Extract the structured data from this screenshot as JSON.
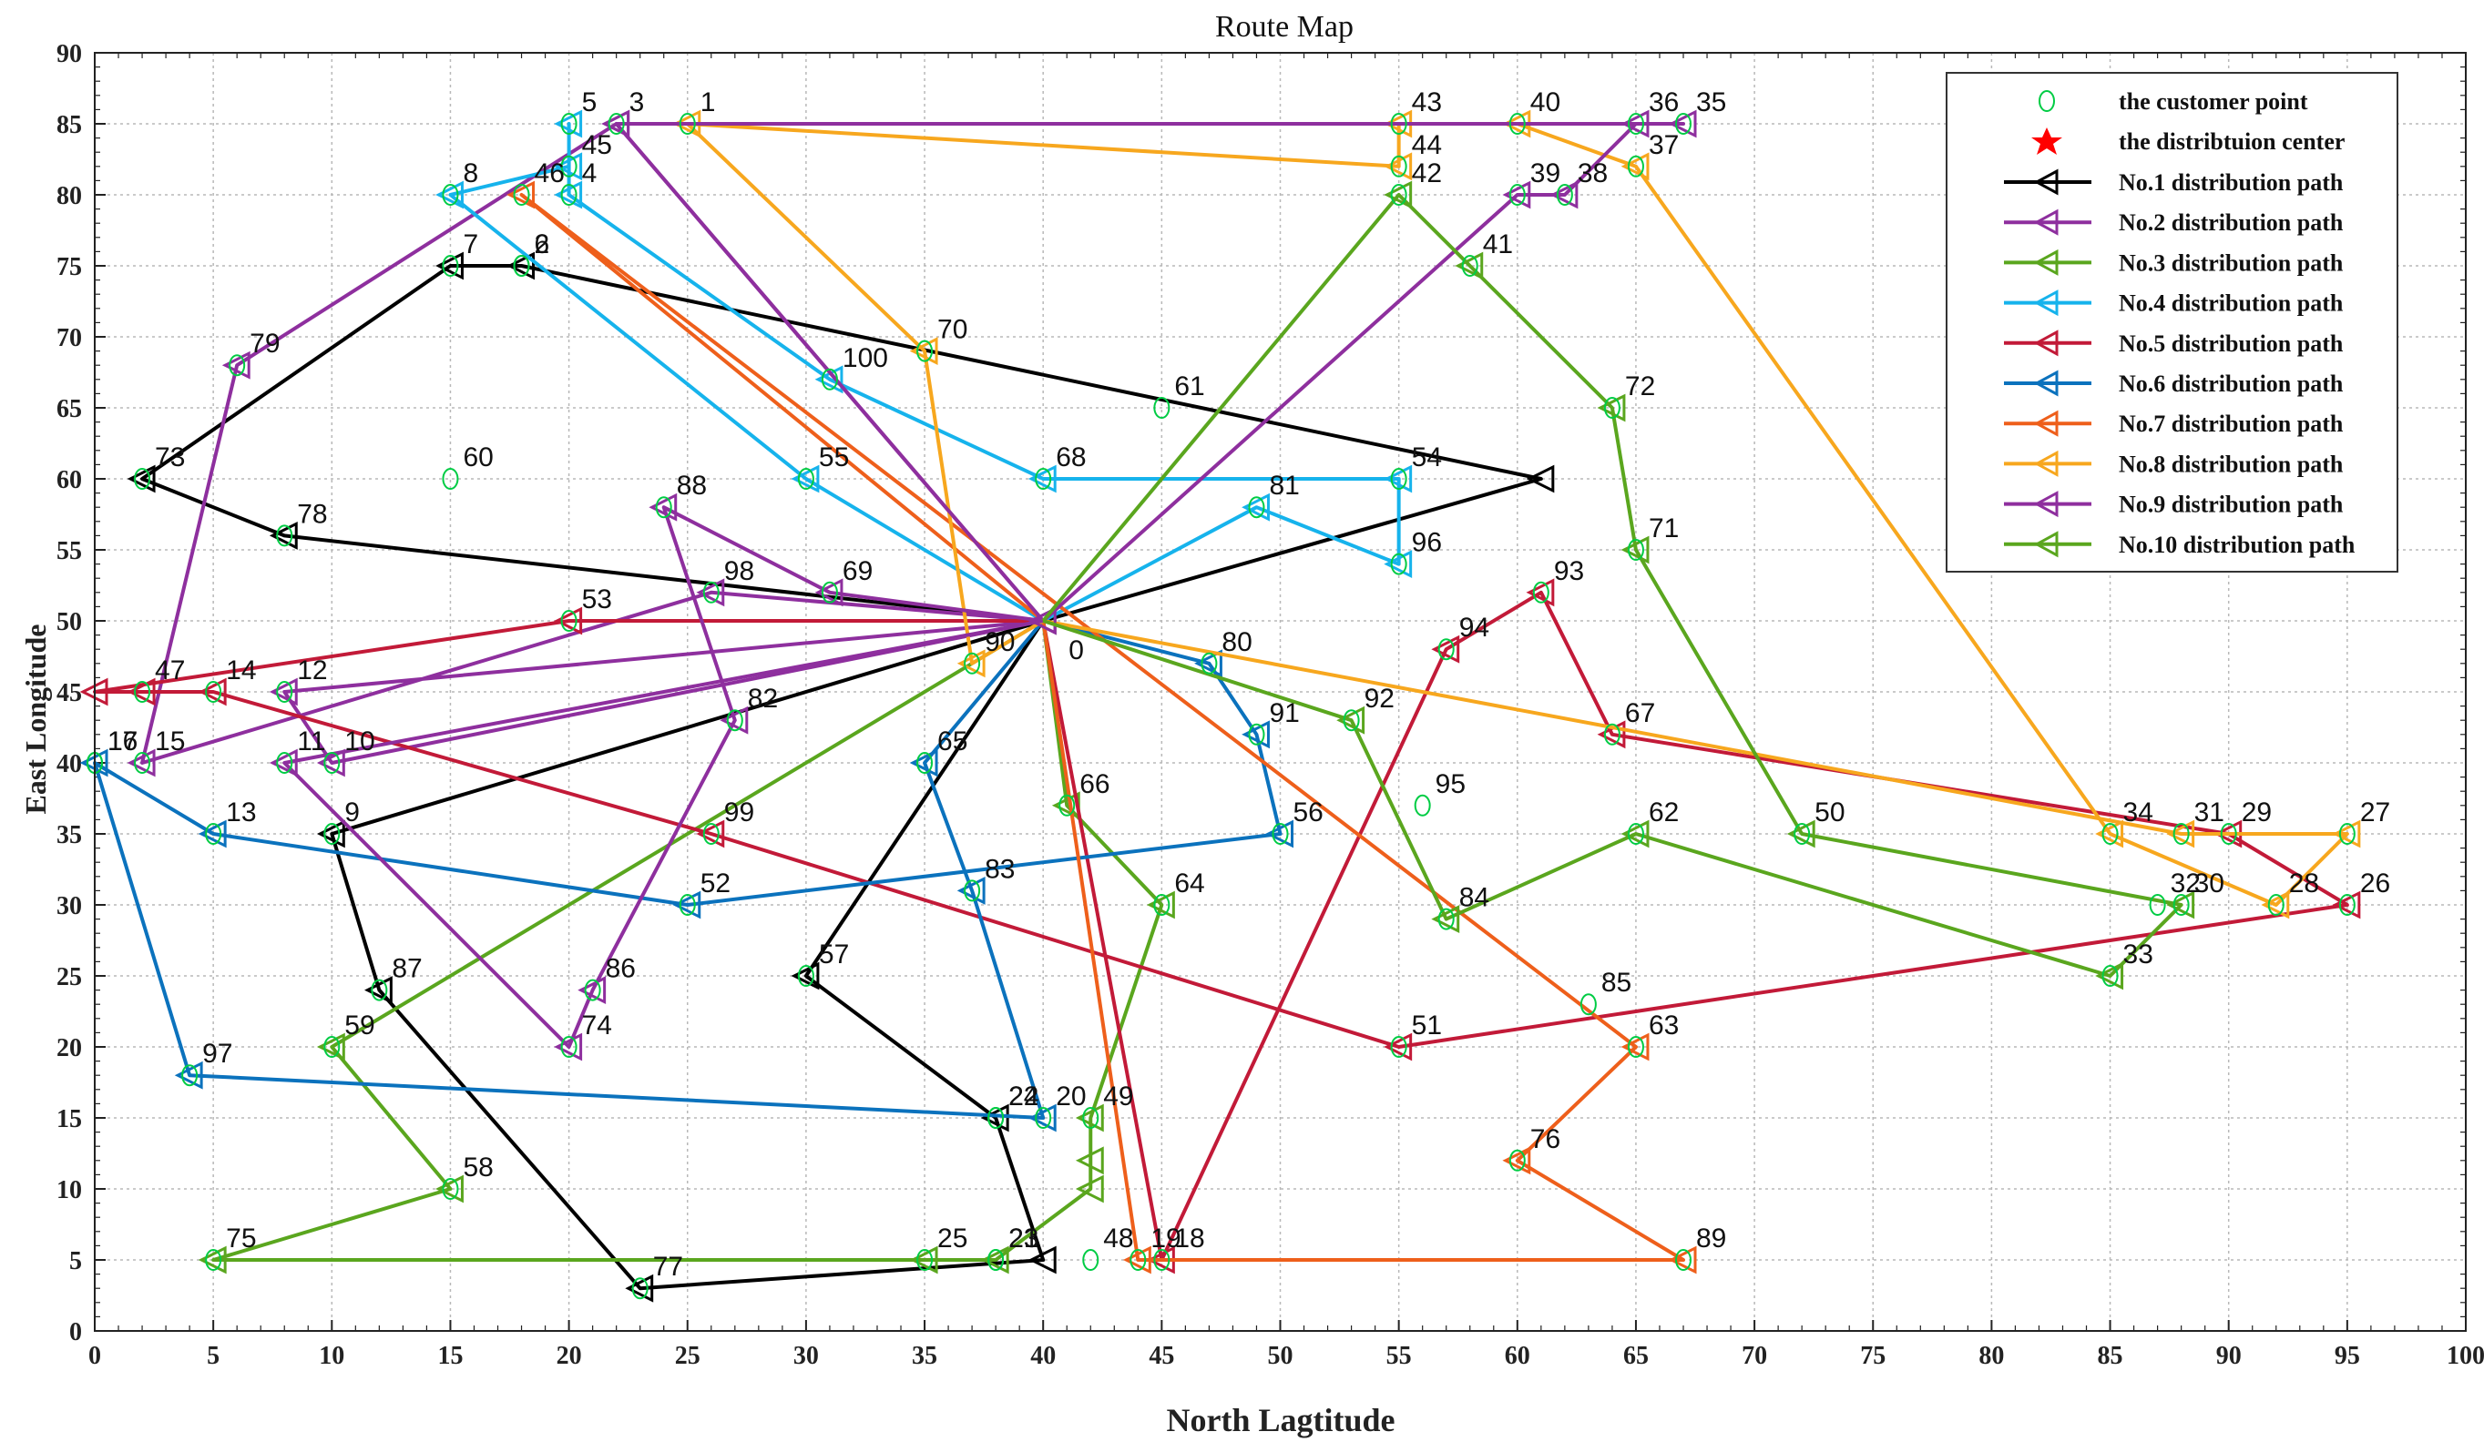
{
  "chart_data": {
    "type": "line",
    "title": "Route Map",
    "xlabel": "North Lagtitude",
    "ylabel": "East Longitude",
    "xlim": [
      0,
      100
    ],
    "ylim": [
      0,
      90
    ],
    "x_ticks": [
      0,
      5,
      10,
      15,
      20,
      25,
      30,
      35,
      40,
      45,
      50,
      55,
      60,
      65,
      70,
      75,
      80,
      85,
      90,
      95,
      100
    ],
    "y_ticks": [
      0,
      5,
      10,
      15,
      20,
      25,
      30,
      35,
      40,
      45,
      50,
      55,
      60,
      65,
      70,
      75,
      80,
      85,
      90
    ],
    "grid": true,
    "legend_position": "top-right",
    "legend": {
      "customer": "the customer point",
      "center": "the distribtuion center"
    },
    "center": {
      "label": "0",
      "x": 40,
      "y": 50
    },
    "customers": [
      {
        "id": "1",
        "x": 25,
        "y": 85
      },
      {
        "id": "2",
        "x": 18,
        "y": 75
      },
      {
        "id": "3",
        "x": 22,
        "y": 85
      },
      {
        "id": "4",
        "x": 20,
        "y": 80
      },
      {
        "id": "5",
        "x": 20,
        "y": 85
      },
      {
        "id": "6",
        "x": 18,
        "y": 75
      },
      {
        "id": "7",
        "x": 15,
        "y": 75
      },
      {
        "id": "8",
        "x": 15,
        "y": 80
      },
      {
        "id": "9",
        "x": 10,
        "y": 35
      },
      {
        "id": "10",
        "x": 10,
        "y": 40
      },
      {
        "id": "11",
        "x": 8,
        "y": 40
      },
      {
        "id": "12",
        "x": 8,
        "y": 45
      },
      {
        "id": "13",
        "x": 5,
        "y": 35
      },
      {
        "id": "14",
        "x": 5,
        "y": 45
      },
      {
        "id": "15",
        "x": 2,
        "y": 40
      },
      {
        "id": "16",
        "x": 0,
        "y": 40
      },
      {
        "id": "17",
        "x": 0,
        "y": 40
      },
      {
        "id": "18",
        "x": 45,
        "y": 5
      },
      {
        "id": "19",
        "x": 44,
        "y": 5
      },
      {
        "id": "20",
        "x": 40,
        "y": 15
      },
      {
        "id": "21",
        "x": 38,
        "y": 5
      },
      {
        "id": "22",
        "x": 38,
        "y": 15
      },
      {
        "id": "23",
        "x": 38,
        "y": 5
      },
      {
        "id": "24",
        "x": 38,
        "y": 15
      },
      {
        "id": "25",
        "x": 35,
        "y": 5
      },
      {
        "id": "26",
        "x": 95,
        "y": 30
      },
      {
        "id": "27",
        "x": 95,
        "y": 35
      },
      {
        "id": "28",
        "x": 92,
        "y": 30
      },
      {
        "id": "29",
        "x": 90,
        "y": 35
      },
      {
        "id": "30",
        "x": 88,
        "y": 30
      },
      {
        "id": "31",
        "x": 88,
        "y": 35
      },
      {
        "id": "32",
        "x": 87,
        "y": 30
      },
      {
        "id": "33",
        "x": 85,
        "y": 25
      },
      {
        "id": "34",
        "x": 85,
        "y": 35
      },
      {
        "id": "35",
        "x": 67,
        "y": 85
      },
      {
        "id": "36",
        "x": 65,
        "y": 85
      },
      {
        "id": "37",
        "x": 65,
        "y": 82
      },
      {
        "id": "38",
        "x": 62,
        "y": 80
      },
      {
        "id": "39",
        "x": 60,
        "y": 80
      },
      {
        "id": "40",
        "x": 60,
        "y": 85
      },
      {
        "id": "41",
        "x": 58,
        "y": 75
      },
      {
        "id": "42",
        "x": 55,
        "y": 80
      },
      {
        "id": "43",
        "x": 55,
        "y": 85
      },
      {
        "id": "44",
        "x": 55,
        "y": 82
      },
      {
        "id": "45",
        "x": 20,
        "y": 82
      },
      {
        "id": "46",
        "x": 18,
        "y": 80
      },
      {
        "id": "47",
        "x": 2,
        "y": 45
      },
      {
        "id": "48",
        "x": 42,
        "y": 5
      },
      {
        "id": "49",
        "x": 42,
        "y": 15
      },
      {
        "id": "50",
        "x": 72,
        "y": 35
      },
      {
        "id": "51",
        "x": 55,
        "y": 20
      },
      {
        "id": "52",
        "x": 25,
        "y": 30
      },
      {
        "id": "53",
        "x": 20,
        "y": 50
      },
      {
        "id": "54",
        "x": 55,
        "y": 60
      },
      {
        "id": "55",
        "x": 30,
        "y": 60
      },
      {
        "id": "56",
        "x": 50,
        "y": 35
      },
      {
        "id": "57",
        "x": 30,
        "y": 25
      },
      {
        "id": "58",
        "x": 15,
        "y": 10
      },
      {
        "id": "59",
        "x": 10,
        "y": 20
      },
      {
        "id": "60",
        "x": 15,
        "y": 60
      },
      {
        "id": "61",
        "x": 45,
        "y": 65
      },
      {
        "id": "62",
        "x": 65,
        "y": 35
      },
      {
        "id": "63",
        "x": 65,
        "y": 20
      },
      {
        "id": "64",
        "x": 45,
        "y": 30
      },
      {
        "id": "65",
        "x": 35,
        "y": 40
      },
      {
        "id": "66",
        "x": 41,
        "y": 37
      },
      {
        "id": "67",
        "x": 64,
        "y": 42
      },
      {
        "id": "68",
        "x": 40,
        "y": 60
      },
      {
        "id": "69",
        "x": 31,
        "y": 52
      },
      {
        "id": "70",
        "x": 35,
        "y": 69
      },
      {
        "id": "71",
        "x": 65,
        "y": 55
      },
      {
        "id": "72",
        "x": 64,
        "y": 65
      },
      {
        "id": "73",
        "x": 2,
        "y": 60
      },
      {
        "id": "74",
        "x": 20,
        "y": 20
      },
      {
        "id": "75",
        "x": 5,
        "y": 5
      },
      {
        "id": "76",
        "x": 60,
        "y": 12
      },
      {
        "id": "77",
        "x": 23,
        "y": 3
      },
      {
        "id": "78",
        "x": 8,
        "y": 56
      },
      {
        "id": "79",
        "x": 6,
        "y": 68
      },
      {
        "id": "80",
        "x": 47,
        "y": 47
      },
      {
        "id": "81",
        "x": 49,
        "y": 58
      },
      {
        "id": "82",
        "x": 27,
        "y": 43
      },
      {
        "id": "83",
        "x": 37,
        "y": 31
      },
      {
        "id": "84",
        "x": 57,
        "y": 29
      },
      {
        "id": "85",
        "x": 63,
        "y": 23
      },
      {
        "id": "86",
        "x": 21,
        "y": 24
      },
      {
        "id": "87",
        "x": 12,
        "y": 24
      },
      {
        "id": "88",
        "x": 24,
        "y": 58
      },
      {
        "id": "89",
        "x": 67,
        "y": 5
      },
      {
        "id": "90",
        "x": 37,
        "y": 47
      },
      {
        "id": "91",
        "x": 49,
        "y": 42
      },
      {
        "id": "92",
        "x": 53,
        "y": 43
      },
      {
        "id": "93",
        "x": 61,
        "y": 52
      },
      {
        "id": "94",
        "x": 57,
        "y": 48
      },
      {
        "id": "95",
        "x": 56,
        "y": 37
      },
      {
        "id": "96",
        "x": 55,
        "y": 54
      },
      {
        "id": "97",
        "x": 4,
        "y": 18
      },
      {
        "id": "98",
        "x": 26,
        "y": 52
      },
      {
        "id": "99",
        "x": 26,
        "y": 35
      },
      {
        "id": "100",
        "x": 31,
        "y": 67
      }
    ],
    "series": [
      {
        "name": "No.1 distribution path",
        "color": "#000000",
        "points": [
          [
            40,
            50
          ],
          [
            61,
            60
          ],
          [
            18,
            75
          ],
          [
            15,
            75
          ],
          [
            2,
            60
          ],
          [
            8,
            56
          ],
          [
            40,
            50
          ],
          [
            10,
            35
          ],
          [
            12,
            24
          ],
          [
            23,
            3
          ],
          [
            40,
            5
          ],
          [
            38,
            15
          ],
          [
            30,
            25
          ],
          [
            40,
            50
          ]
        ]
      },
      {
        "name": "No.2 distribution path",
        "color": "#8e2f9e",
        "points": [
          [
            40,
            50
          ],
          [
            26,
            52
          ],
          [
            2,
            40
          ],
          [
            6,
            68
          ],
          [
            22,
            85
          ],
          [
            40,
            50
          ],
          [
            8,
            45
          ],
          [
            10,
            40
          ],
          [
            40,
            50
          ]
        ]
      },
      {
        "name": "No.3 distribution path",
        "color": "#5aa61e",
        "points": [
          [
            40,
            50
          ],
          [
            41,
            37
          ],
          [
            45,
            30
          ],
          [
            42,
            15
          ],
          [
            42,
            12
          ],
          [
            42,
            10
          ],
          [
            38,
            5
          ],
          [
            35,
            5
          ],
          [
            5,
            5
          ],
          [
            15,
            10
          ],
          [
            10,
            20
          ],
          [
            40,
            50
          ]
        ]
      },
      {
        "name": "No.4 distribution path",
        "color": "#16b3ec",
        "points": [
          [
            40,
            50
          ],
          [
            30,
            60
          ],
          [
            15,
            80
          ],
          [
            20,
            82
          ],
          [
            20,
            85
          ],
          [
            20,
            80
          ],
          [
            31,
            67
          ],
          [
            40,
            60
          ],
          [
            55,
            60
          ],
          [
            55,
            54
          ],
          [
            49,
            58
          ],
          [
            40,
            50
          ]
        ]
      },
      {
        "name": "No.5 distribution path",
        "color": "#c21a38",
        "points": [
          [
            40,
            50
          ],
          [
            20,
            50
          ],
          [
            0,
            45
          ],
          [
            2,
            45
          ],
          [
            5,
            45
          ],
          [
            26,
            35
          ],
          [
            55,
            20
          ],
          [
            95,
            30
          ],
          [
            90,
            35
          ],
          [
            64,
            42
          ],
          [
            61,
            52
          ],
          [
            57,
            48
          ],
          [
            45,
            5
          ],
          [
            40,
            50
          ]
        ]
      },
      {
        "name": "No.6 distribution path",
        "color": "#0b72bd",
        "points": [
          [
            40,
            50
          ],
          [
            47,
            47
          ],
          [
            49,
            42
          ],
          [
            50,
            35
          ],
          [
            25,
            30
          ],
          [
            5,
            35
          ],
          [
            0,
            40
          ],
          [
            4,
            18
          ],
          [
            40,
            15
          ],
          [
            37,
            31
          ],
          [
            35,
            40
          ],
          [
            40,
            50
          ]
        ]
      },
      {
        "name": "No.7 distribution path",
        "color": "#ee5f1b",
        "points": [
          [
            40,
            50
          ],
          [
            44,
            5
          ],
          [
            67,
            5
          ],
          [
            60,
            12
          ],
          [
            65,
            20
          ],
          [
            18,
            80
          ],
          [
            40,
            50
          ]
        ]
      },
      {
        "name": "No.8 distribution path",
        "color": "#f7a71e",
        "points": [
          [
            40,
            50
          ],
          [
            37,
            47
          ],
          [
            35,
            69
          ],
          [
            25,
            85
          ],
          [
            55,
            82
          ],
          [
            55,
            85
          ],
          [
            60,
            85
          ],
          [
            65,
            82
          ],
          [
            85,
            35
          ],
          [
            92,
            30
          ],
          [
            95,
            35
          ],
          [
            88,
            35
          ],
          [
            40,
            50
          ]
        ]
      },
      {
        "name": "No.9 distribution path",
        "color": "#8e2f9e",
        "points": [
          [
            40,
            50
          ],
          [
            60,
            80
          ],
          [
            62,
            80
          ],
          [
            65,
            85
          ],
          [
            67,
            85
          ],
          [
            22,
            85
          ],
          [
            40,
            50
          ],
          [
            31,
            52
          ],
          [
            24,
            58
          ],
          [
            27,
            43
          ],
          [
            21,
            24
          ],
          [
            20,
            20
          ],
          [
            8,
            40
          ],
          [
            40,
            50
          ]
        ]
      },
      {
        "name": "No.10 distribution path",
        "color": "#5aa61e",
        "points": [
          [
            40,
            50
          ],
          [
            53,
            43
          ],
          [
            57,
            29
          ],
          [
            65,
            35
          ],
          [
            85,
            25
          ],
          [
            88,
            30
          ],
          [
            72,
            35
          ],
          [
            65,
            55
          ],
          [
            64,
            65
          ],
          [
            58,
            75
          ],
          [
            55,
            80
          ],
          [
            40,
            50
          ]
        ]
      }
    ]
  }
}
